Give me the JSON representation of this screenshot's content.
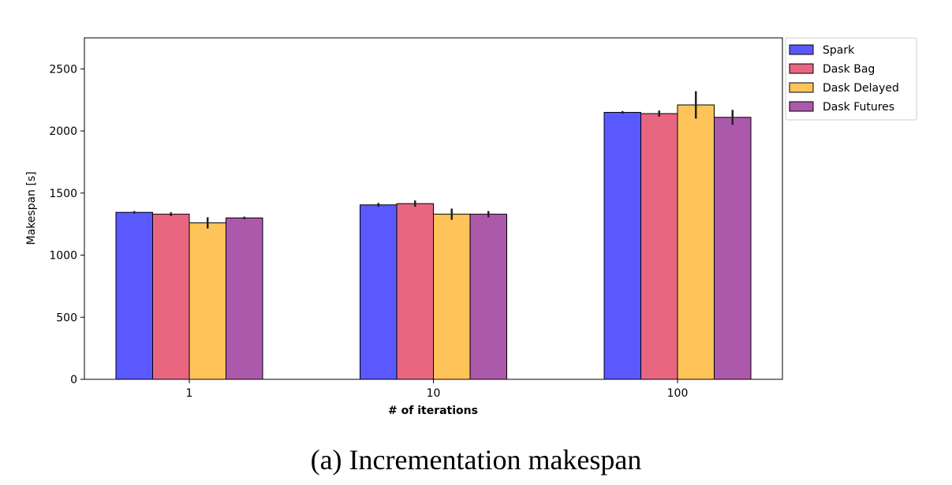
{
  "caption": "(a) Incrementation makespan",
  "chart_data": {
    "type": "bar",
    "title": "",
    "xlabel": "# of iterations",
    "ylabel": "Makespan [s]",
    "categories": [
      "1",
      "10",
      "100"
    ],
    "ylim": [
      0,
      2750
    ],
    "yticks": [
      0,
      500,
      1000,
      1500,
      2000,
      2500
    ],
    "grid": false,
    "legend_position": "outside-top-right",
    "series": [
      {
        "name": "Spark",
        "color": "#0000ff",
        "values": [
          1345,
          1405,
          2150
        ],
        "errors": [
          10,
          15,
          10
        ]
      },
      {
        "name": "Dask Bag",
        "color": "#dc143c",
        "values": [
          1330,
          1415,
          2140
        ],
        "errors": [
          15,
          25,
          25
        ]
      },
      {
        "name": "Dask Delayed",
        "color": "#ffa500",
        "values": [
          1260,
          1330,
          2210
        ],
        "errors": [
          45,
          45,
          110
        ]
      },
      {
        "name": "Dask Futures",
        "color": "#800080",
        "values": [
          1300,
          1330,
          2110
        ],
        "errors": [
          10,
          25,
          60
        ]
      }
    ]
  }
}
